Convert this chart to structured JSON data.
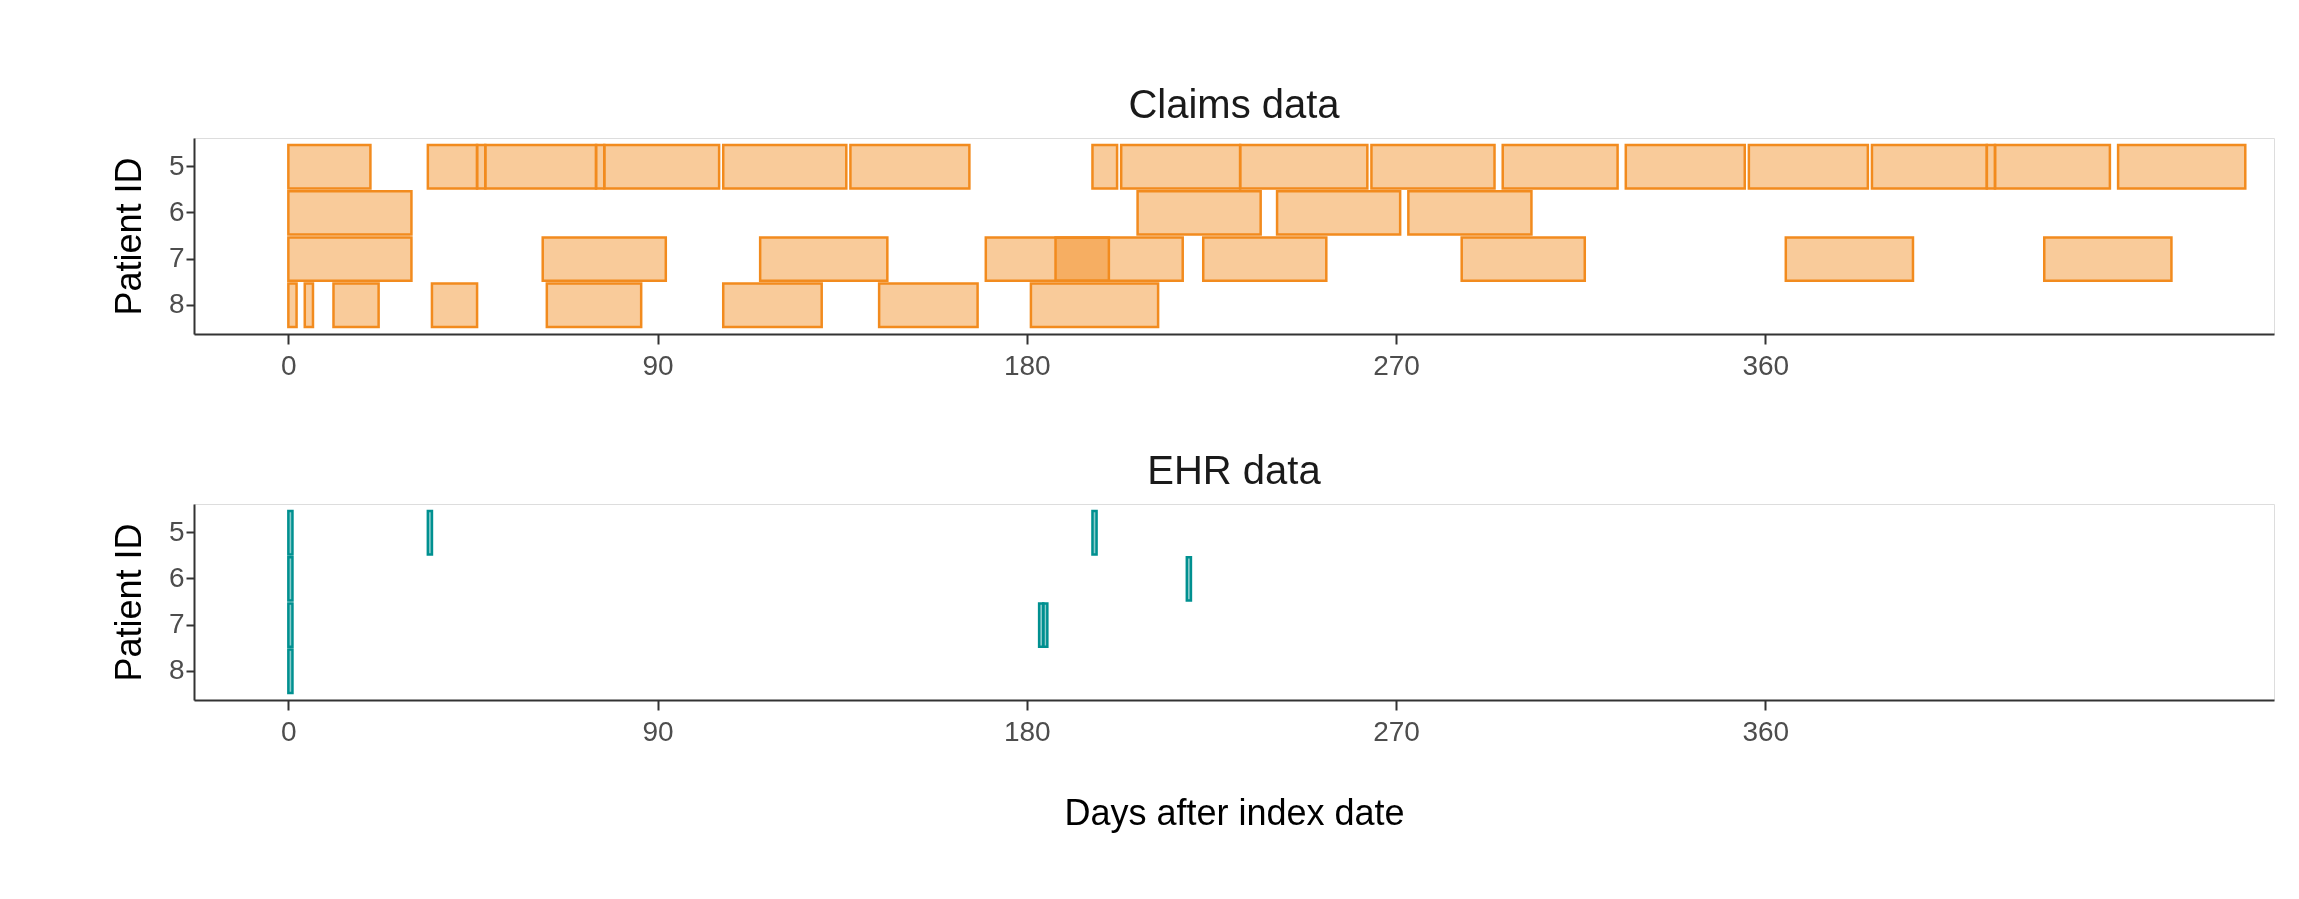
{
  "chart_data": [
    {
      "type": "bar",
      "orientation": "horizontal",
      "title": "Claims data",
      "ylabel": "Patient ID",
      "grid": false,
      "categories": [
        "5",
        "6",
        "7",
        "8"
      ],
      "series": [
        {
          "color": "#f28b1e",
          "base": [
            0,
            0,
            0,
            0
          ],
          "values": [
            20,
            30,
            30,
            2
          ]
        },
        {
          "color": "#f28b1e",
          "base": [
            34,
            207,
            62,
            4
          ],
          "values": [
            12,
            30,
            30,
            2
          ]
        },
        {
          "color": "#f28b1e",
          "base": [
            46,
            241,
            115,
            11
          ],
          "values": [
            2,
            30,
            31,
            11
          ]
        },
        {
          "color": "#f28b1e",
          "base": [
            48,
            273,
            170,
            35
          ],
          "values": [
            27,
            30,
            30,
            11
          ]
        },
        {
          "color": "#f28b1e",
          "base": [
            75,
            null,
            187,
            63
          ],
          "values": [
            2,
            null,
            31,
            23
          ]
        },
        {
          "color": "#f28b1e",
          "base": [
            77,
            null,
            223,
            106
          ],
          "values": [
            28,
            null,
            30,
            24
          ]
        },
        {
          "color": "#f28b1e",
          "base": [
            106,
            null,
            286,
            144
          ],
          "values": [
            30,
            null,
            30,
            24
          ]
        },
        {
          "color": "#f28b1e",
          "base": [
            137,
            null,
            365,
            181
          ],
          "values": [
            29,
            null,
            31,
            31
          ]
        },
        {
          "color": "#f28b1e",
          "base": [
            196,
            null,
            428,
            null
          ],
          "values": [
            6,
            null,
            31,
            null
          ]
        },
        {
          "color": "#f28b1e",
          "base": [
            203,
            null,
            null,
            null
          ],
          "values": [
            29,
            null,
            null,
            null
          ]
        },
        {
          "color": "#f28b1e",
          "base": [
            232,
            null,
            null,
            null
          ],
          "values": [
            31,
            null,
            null,
            null
          ]
        },
        {
          "color": "#f28b1e",
          "base": [
            264,
            null,
            null,
            null
          ],
          "values": [
            30,
            null,
            null,
            null
          ]
        },
        {
          "color": "#f28b1e",
          "base": [
            296,
            null,
            null,
            null
          ],
          "values": [
            28,
            null,
            null,
            null
          ]
        },
        {
          "color": "#f28b1e",
          "base": [
            326,
            null,
            null,
            null
          ],
          "values": [
            29,
            null,
            null,
            null
          ]
        },
        {
          "color": "#f28b1e",
          "base": [
            356,
            null,
            null,
            null
          ],
          "values": [
            29,
            null,
            null,
            null
          ]
        },
        {
          "color": "#f28b1e",
          "base": [
            386,
            null,
            null,
            null
          ],
          "values": [
            28,
            null,
            null,
            null
          ]
        },
        {
          "color": "#f28b1e",
          "base": [
            414,
            null,
            null,
            null
          ],
          "values": [
            2,
            null,
            null,
            null
          ]
        },
        {
          "color": "#f28b1e",
          "base": [
            416,
            null,
            null,
            null
          ],
          "values": [
            28,
            null,
            null,
            null
          ]
        },
        {
          "color": "#f28b1e",
          "base": [
            446,
            null,
            null,
            null
          ],
          "values": [
            31,
            null,
            null,
            null
          ]
        }
      ],
      "xlim": [
        -23,
        484
      ],
      "xticks": [
        0,
        90,
        180,
        270,
        360
      ]
    },
    {
      "type": "bar",
      "orientation": "horizontal",
      "title": "EHR data",
      "ylabel": "Patient ID",
      "xlabel": "Days after index date",
      "grid": false,
      "categories": [
        "5",
        "6",
        "7",
        "8"
      ],
      "series": [
        {
          "color": "#009090",
          "base": [
            0,
            0,
            0,
            0
          ],
          "values": [
            1,
            1,
            1,
            1
          ]
        },
        {
          "color": "#009090",
          "base": [
            34,
            219,
            183,
            null
          ],
          "values": [
            1,
            1,
            1,
            null
          ]
        },
        {
          "color": "#009090",
          "base": [
            196,
            null,
            184,
            null
          ],
          "values": [
            1,
            null,
            1,
            null
          ]
        }
      ],
      "xlim": [
        -23,
        484
      ],
      "xticks": [
        0,
        90,
        180,
        270,
        360
      ]
    }
  ]
}
